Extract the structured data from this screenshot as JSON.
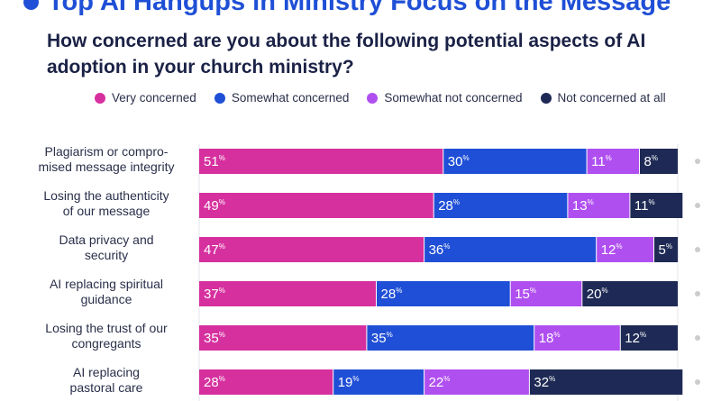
{
  "header": {
    "headline": "Top AI Hangups in Ministry Focus on the Message",
    "question": "How concerned are you about the following potential aspects of AI adoption in your church ministry?"
  },
  "colors": {
    "very_concerned": "#d6309f",
    "somewhat_concerned": "#1f4fd6",
    "somewhat_not_concerned": "#b04ff0",
    "not_concerned_at_all": "#1e2a55",
    "headline": "#1f4fd6"
  },
  "chart_data": {
    "type": "bar",
    "orientation": "horizontal",
    "stacked": true,
    "unit": "%",
    "xlim": [
      0,
      100
    ],
    "categories": [
      [
        "Plagiarism or compro-",
        "mised message integrity"
      ],
      [
        "Losing the authenticity",
        "of our message"
      ],
      [
        "Data privacy and",
        "security"
      ],
      [
        "AI replacing spiritual",
        "guidance"
      ],
      [
        "Losing the trust of our",
        "congregants"
      ],
      [
        "AI replacing",
        "pastoral care"
      ]
    ],
    "series": [
      {
        "name": "Very concerned",
        "values": [
          51,
          49,
          47,
          37,
          35,
          28
        ]
      },
      {
        "name": "Somewhat concerned",
        "values": [
          30,
          28,
          36,
          28,
          35,
          19
        ]
      },
      {
        "name": "Somewhat not concerned",
        "values": [
          11,
          13,
          12,
          15,
          18,
          22
        ]
      },
      {
        "name": "Not concerned at all",
        "values": [
          8,
          11,
          5,
          20,
          12,
          32
        ]
      }
    ],
    "legend_position": "top",
    "grid": false
  }
}
